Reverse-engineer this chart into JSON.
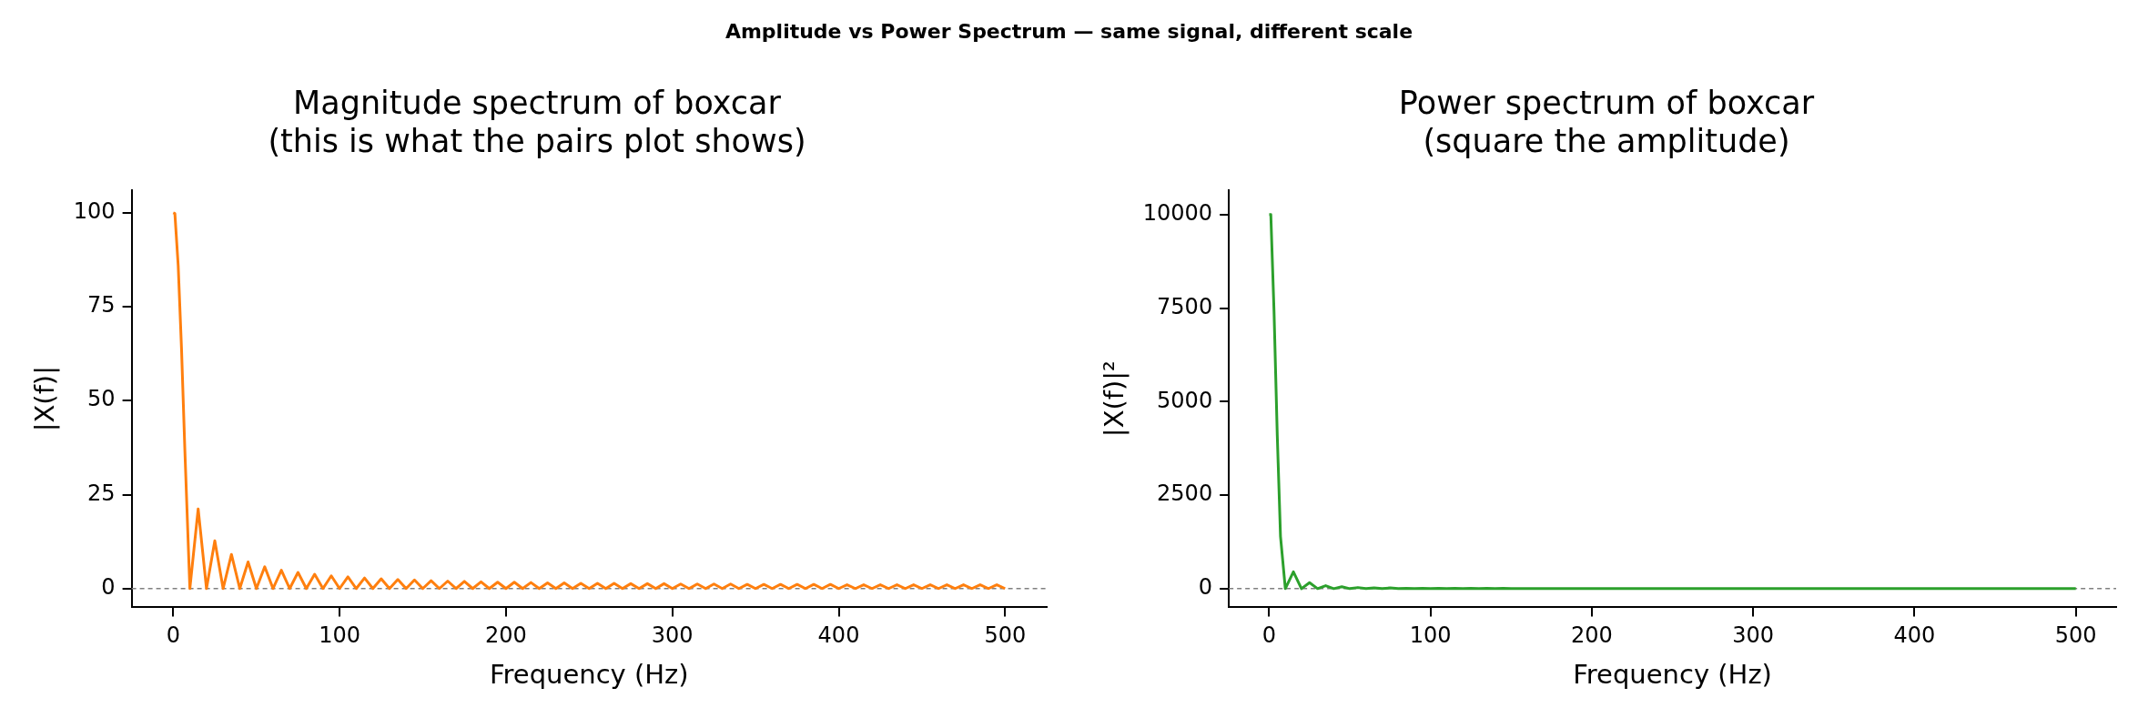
{
  "chart_data": [
    {
      "type": "other",
      "title": "Amplitude vs Power Spectrum — same signal, different scale"
    },
    {
      "type": "line",
      "title": "Magnitude spectrum of boxcar\n(this is what the pairs plot shows)",
      "xlabel": "Frequency (Hz)",
      "ylabel": "|X(f)|",
      "grid": false,
      "legend": false,
      "marker": "none",
      "line_style": "solid",
      "xlim": [
        -25,
        525
      ],
      "xticks": [
        0,
        100,
        200,
        300,
        400,
        500
      ],
      "ylim": [
        -5,
        106
      ],
      "yticks": [
        0,
        25,
        50,
        75,
        100
      ],
      "ref_lines": [
        {
          "axis": "y",
          "value": 0,
          "color": "#808080",
          "line_style": "dashed"
        }
      ],
      "x": [
        0,
        1,
        3,
        5,
        7,
        10,
        15,
        20,
        25,
        30,
        35,
        40,
        45,
        50,
        55,
        60,
        65,
        70,
        75,
        80,
        85,
        90,
        95,
        100,
        105,
        110,
        115,
        120,
        125,
        130,
        135,
        140,
        145,
        150,
        155,
        160,
        165,
        170,
        175,
        180,
        185,
        190,
        195,
        200,
        205,
        210,
        215,
        220,
        225,
        230,
        235,
        240,
        245,
        250,
        255,
        260,
        265,
        270,
        275,
        280,
        285,
        290,
        295,
        300,
        305,
        310,
        315,
        320,
        325,
        330,
        335,
        340,
        345,
        350,
        355,
        360,
        365,
        370,
        375,
        380,
        385,
        390,
        395,
        400,
        405,
        410,
        415,
        420,
        425,
        430,
        435,
        440,
        445,
        450,
        455,
        460,
        465,
        470,
        475,
        480,
        485,
        490,
        495,
        500
      ],
      "series": [
        {
          "color": "#ff7f0e",
          "values": [
            100,
            99.8,
            85.9,
            63.7,
            36.8,
            0,
            21.2,
            0,
            12.7,
            0,
            9.1,
            0,
            7.1,
            0,
            5.8,
            0,
            4.9,
            0,
            4.3,
            0,
            3.8,
            0,
            3.4,
            0,
            3.1,
            0,
            2.8,
            0,
            2.6,
            0,
            2.4,
            0,
            2.3,
            0,
            2.1,
            0,
            2.0,
            0,
            1.9,
            0,
            1.8,
            0,
            1.7,
            0,
            1.7,
            0,
            1.6,
            0,
            1.5,
            0,
            1.5,
            0,
            1.4,
            0,
            1.4,
            0,
            1.4,
            0,
            1.3,
            0,
            1.3,
            0,
            1.3,
            0,
            1.2,
            0,
            1.2,
            0,
            1.2,
            0,
            1.2,
            0,
            1.1,
            0,
            1.1,
            0,
            1.1,
            0,
            1.1,
            0,
            1.1,
            0,
            1.1,
            0,
            1.0,
            0,
            1.0,
            0,
            1.0,
            0,
            1.0,
            0,
            1.0,
            0,
            1.0,
            0,
            1.0,
            0,
            1.0,
            0,
            1.0,
            0,
            1.0,
            0
          ]
        }
      ]
    },
    {
      "type": "line",
      "title": "Power spectrum of boxcar\n(square the amplitude)",
      "xlabel": "Frequency (Hz)",
      "ylabel": "|X(f)|²",
      "grid": false,
      "legend": false,
      "marker": "none",
      "line_style": "solid",
      "xlim": [
        -25,
        525
      ],
      "xticks": [
        0,
        100,
        200,
        300,
        400,
        500
      ],
      "ylim": [
        -500,
        10650
      ],
      "yticks": [
        0,
        2500,
        5000,
        7500,
        10000
      ],
      "ref_lines": [
        {
          "axis": "y",
          "value": 0,
          "color": "#808080",
          "line_style": "dashed"
        }
      ],
      "x": [
        0,
        1,
        3,
        5,
        7,
        10,
        15,
        20,
        25,
        30,
        35,
        40,
        45,
        50,
        55,
        60,
        65,
        70,
        75,
        80,
        85,
        90,
        95,
        100,
        105,
        110,
        115,
        120,
        125,
        130,
        135,
        140,
        145,
        150,
        155,
        160,
        165,
        170,
        175,
        180,
        185,
        190,
        195,
        200,
        205,
        210,
        215,
        220,
        225,
        230,
        235,
        240,
        245,
        250,
        255,
        260,
        265,
        270,
        275,
        280,
        285,
        290,
        295,
        300,
        305,
        310,
        315,
        320,
        325,
        330,
        335,
        340,
        345,
        350,
        355,
        360,
        365,
        370,
        375,
        380,
        385,
        390,
        395,
        400,
        405,
        410,
        415,
        420,
        425,
        430,
        435,
        440,
        445,
        450,
        455,
        460,
        465,
        470,
        475,
        480,
        485,
        490,
        495,
        500
      ],
      "series": [
        {
          "color": "#2ca02c",
          "values": [
            10000,
            10000,
            7400,
            4100,
            1400,
            0,
            450,
            0,
            160,
            0,
            80,
            0,
            50,
            0,
            30,
            0,
            20,
            0,
            20,
            0,
            10,
            0,
            10,
            0,
            10,
            0,
            10,
            0,
            10,
            0,
            10,
            0,
            10,
            0,
            0,
            0,
            0,
            0,
            0,
            0,
            0,
            0,
            0,
            0,
            0,
            0,
            0,
            0,
            0,
            0,
            0,
            0,
            0,
            0,
            0,
            0,
            0,
            0,
            0,
            0,
            0,
            0,
            0,
            0,
            0,
            0,
            0,
            0,
            0,
            0,
            0,
            0,
            0,
            0,
            0,
            0,
            0,
            0,
            0,
            0,
            0,
            0,
            0,
            0,
            0,
            0,
            0,
            0,
            0,
            0,
            0,
            0,
            0,
            0,
            0,
            0,
            0,
            0,
            0,
            0,
            0,
            0,
            0,
            0
          ]
        }
      ]
    }
  ]
}
